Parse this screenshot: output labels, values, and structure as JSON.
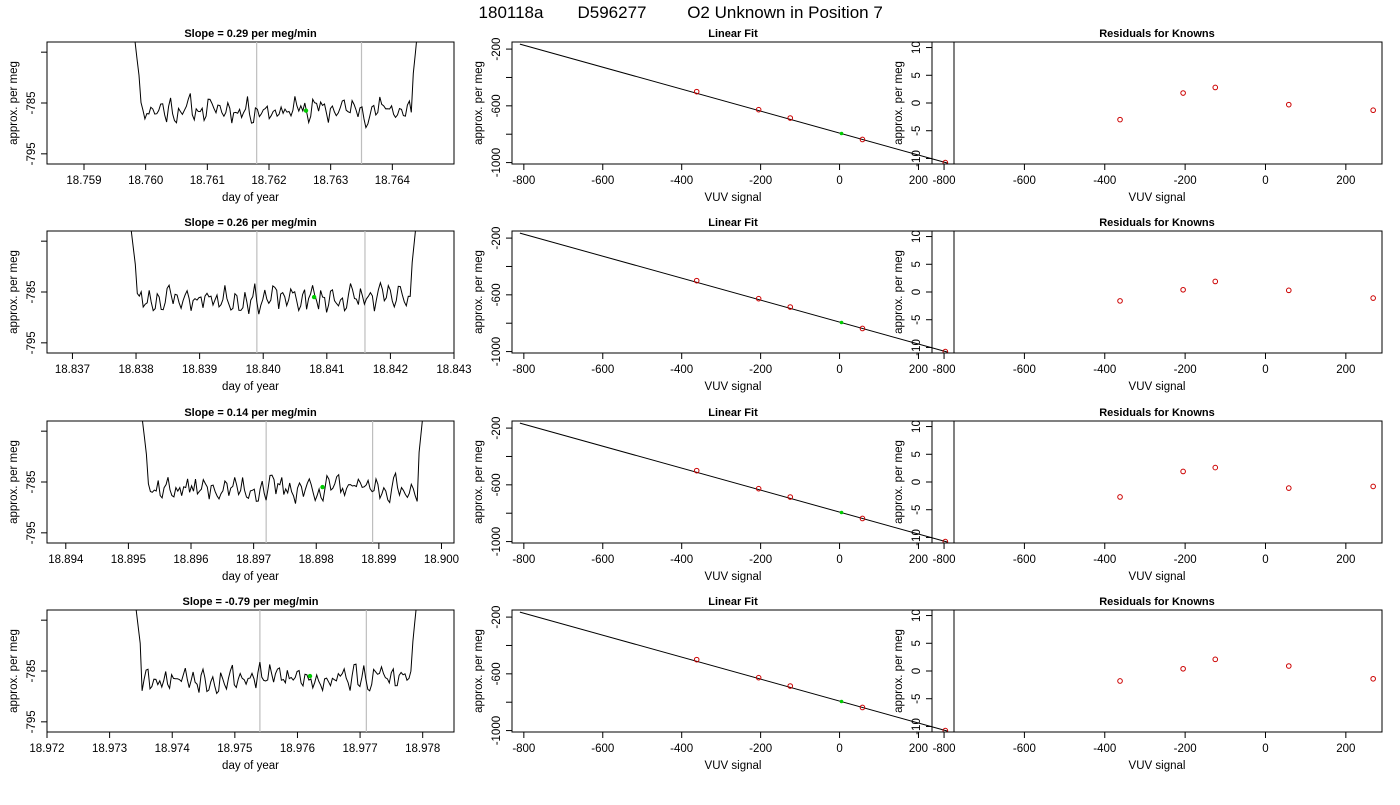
{
  "header": {
    "run_id": "180118a",
    "sample_id": "D596277",
    "description": "O2 Unknown in Position  7"
  },
  "chart_data": [
    {
      "type": "line",
      "panel": "time",
      "row": 0,
      "title": "Slope =  0.29  per meg/min",
      "xlabel": "day of year",
      "ylabel": "approx. per meg",
      "xlim": [
        18.7584,
        18.765
      ],
      "ylim": [
        -797,
        -773
      ],
      "xticks": [
        18.759,
        18.76,
        18.761,
        18.762,
        18.763,
        18.764
      ],
      "xtick_labels": [
        "18.759",
        "18.760",
        "18.761",
        "18.762",
        "18.763",
        "18.764"
      ],
      "yticks": [
        -795,
        -785,
        -775
      ],
      "ytick_labels": [
        "-795",
        "-785",
        ""
      ],
      "x_start": 18.7597,
      "x_end": 18.7645,
      "vlines": [
        18.7618,
        18.7635
      ],
      "marker": {
        "x": 18.7626,
        "y": -786.5
      },
      "seed": 11,
      "fill_color": "#00cc00"
    },
    {
      "type": "scatter",
      "panel": "fit",
      "row": 0,
      "title": "Linear Fit",
      "xlabel": "VUV signal",
      "ylabel": "approx. per meg",
      "xlim": [
        -830,
        290
      ],
      "ylim": [
        -1010,
        -150
      ],
      "xticks": [
        -800,
        -600,
        -400,
        -200,
        0,
        200
      ],
      "xtick_labels": [
        "-800",
        "-600",
        "-400",
        "-200",
        "0",
        "200"
      ],
      "yticks": [
        -1000,
        -800,
        -600,
        -400,
        -200
      ],
      "ytick_labels": [
        "-1000",
        "",
        "-600",
        "",
        "-200"
      ],
      "line": {
        "x1": -810,
        "y1": -165,
        "x2": 275,
        "y2": -1005
      },
      "points_x": [
        -362,
        -205,
        -125,
        58,
        268
      ],
      "points_y": [
        -500,
        -627,
        -686,
        -837,
        -1000
      ],
      "marker": {
        "x": 5,
        "y": -795
      }
    },
    {
      "type": "scatter",
      "panel": "resid",
      "row": 0,
      "title": "Residuals for Knowns",
      "xlabel": "VUV signal",
      "ylabel": "approx. per meg",
      "xlim": [
        -830,
        290
      ],
      "ylim": [
        -11,
        11
      ],
      "xticks": [
        -800,
        -600,
        -400,
        -200,
        0,
        200
      ],
      "xtick_labels": [
        "-800",
        "-600",
        "-400",
        "-200",
        "0",
        "200"
      ],
      "yticks": [
        -10,
        -5,
        0,
        5,
        10
      ],
      "ytick_labels": [
        "-10",
        "-5",
        "0",
        "5",
        "10"
      ],
      "points_x": [
        -362,
        -205,
        -125,
        58,
        268
      ],
      "points_y": [
        -3.0,
        1.8,
        2.8,
        -0.3,
        -1.3
      ]
    },
    {
      "type": "line",
      "panel": "time",
      "row": 1,
      "title": "Slope =  0.26  per meg/min",
      "xlabel": "day of year",
      "ylabel": "approx. per meg",
      "xlim": [
        18.8366,
        18.843
      ],
      "ylim": [
        -797,
        -773
      ],
      "xticks": [
        18.837,
        18.838,
        18.839,
        18.84,
        18.841,
        18.842,
        18.843
      ],
      "xtick_labels": [
        "18.837",
        "18.838",
        "18.839",
        "18.840",
        "18.841",
        "18.842",
        "18.843"
      ],
      "yticks": [
        -795,
        -785,
        -775
      ],
      "ytick_labels": [
        "-795",
        "-785",
        ""
      ],
      "x_start": 18.8378,
      "x_end": 18.8425,
      "vlines": [
        18.8399,
        18.8416
      ],
      "marker": {
        "x": 18.8408,
        "y": -786
      },
      "seed": 23
    },
    {
      "type": "scatter",
      "panel": "fit",
      "row": 1,
      "title": "Linear Fit",
      "xlabel": "VUV signal",
      "ylabel": "approx. per meg",
      "xlim": [
        -830,
        290
      ],
      "ylim": [
        -1010,
        -150
      ],
      "xticks": [
        -800,
        -600,
        -400,
        -200,
        0,
        200
      ],
      "xtick_labels": [
        "-800",
        "-600",
        "-400",
        "-200",
        "0",
        "200"
      ],
      "yticks": [
        -1000,
        -800,
        -600,
        -400,
        -200
      ],
      "ytick_labels": [
        "-1000",
        "",
        "-600",
        "",
        "-200"
      ],
      "line": {
        "x1": -810,
        "y1": -165,
        "x2": 275,
        "y2": -1005
      },
      "points_x": [
        -362,
        -205,
        -125,
        58,
        268
      ],
      "points_y": [
        -500,
        -627,
        -686,
        -837,
        -1000
      ],
      "marker": {
        "x": 5,
        "y": -795
      }
    },
    {
      "type": "scatter",
      "panel": "resid",
      "row": 1,
      "title": "Residuals for Knowns",
      "xlabel": "VUV signal",
      "ylabel": "approx. per meg",
      "xlim": [
        -830,
        290
      ],
      "ylim": [
        -11,
        11
      ],
      "xticks": [
        -800,
        -600,
        -400,
        -200,
        0,
        200
      ],
      "xtick_labels": [
        "-800",
        "-600",
        "-400",
        "-200",
        "0",
        "200"
      ],
      "yticks": [
        -10,
        -5,
        0,
        5,
        10
      ],
      "ytick_labels": [
        "-10",
        "-5",
        "0",
        "5",
        "10"
      ],
      "points_x": [
        -362,
        -205,
        -125,
        58,
        268
      ],
      "points_y": [
        -1.6,
        0.4,
        1.9,
        0.3,
        -1.1
      ]
    },
    {
      "type": "line",
      "panel": "time",
      "row": 2,
      "title": "Slope =  0.14  per meg/min",
      "xlabel": "day of year",
      "ylabel": "approx. per meg",
      "xlim": [
        18.8937,
        18.9002
      ],
      "ylim": [
        -797,
        -773
      ],
      "xticks": [
        18.894,
        18.895,
        18.896,
        18.897,
        18.898,
        18.899,
        18.9
      ],
      "xtick_labels": [
        "18.894",
        "18.895",
        "18.896",
        "18.897",
        "18.898",
        "18.899",
        "18.900"
      ],
      "yticks": [
        -795,
        -785,
        -775
      ],
      "ytick_labels": [
        "-795",
        "-785",
        ""
      ],
      "x_start": 18.8951,
      "x_end": 18.8998,
      "vlines": [
        18.8972,
        18.8989
      ],
      "marker": {
        "x": 18.8981,
        "y": -786
      },
      "seed": 37
    },
    {
      "type": "scatter",
      "panel": "fit",
      "row": 2,
      "title": "Linear Fit",
      "xlabel": "VUV signal",
      "ylabel": "approx. per meg",
      "xlim": [
        -830,
        290
      ],
      "ylim": [
        -1010,
        -150
      ],
      "xticks": [
        -800,
        -600,
        -400,
        -200,
        0,
        200
      ],
      "xtick_labels": [
        "-800",
        "-600",
        "-400",
        "-200",
        "0",
        "200"
      ],
      "yticks": [
        -1000,
        -800,
        -600,
        -400,
        -200
      ],
      "ytick_labels": [
        "-1000",
        "",
        "-600",
        "",
        "-200"
      ],
      "line": {
        "x1": -810,
        "y1": -165,
        "x2": 275,
        "y2": -1005
      },
      "points_x": [
        -362,
        -205,
        -125,
        58,
        268
      ],
      "points_y": [
        -500,
        -627,
        -686,
        -837,
        -1000
      ],
      "marker": {
        "x": 5,
        "y": -795
      }
    },
    {
      "type": "scatter",
      "panel": "resid",
      "row": 2,
      "title": "Residuals for Knowns",
      "xlabel": "VUV signal",
      "ylabel": "approx. per meg",
      "xlim": [
        -830,
        290
      ],
      "ylim": [
        -11,
        11
      ],
      "xticks": [
        -800,
        -600,
        -400,
        -200,
        0,
        200
      ],
      "xtick_labels": [
        "-800",
        "-600",
        "-400",
        "-200",
        "0",
        "200"
      ],
      "yticks": [
        -10,
        -5,
        0,
        5,
        10
      ],
      "ytick_labels": [
        "-10",
        "-5",
        "0",
        "5",
        "10"
      ],
      "points_x": [
        -362,
        -205,
        -125,
        58,
        268
      ],
      "points_y": [
        -2.7,
        1.9,
        2.6,
        -1.1,
        -0.8
      ]
    },
    {
      "type": "line",
      "panel": "time",
      "row": 3,
      "title": "Slope =  -0.79  per meg/min",
      "xlabel": "day of year",
      "ylabel": "approx. per meg",
      "xlim": [
        18.972,
        18.9785
      ],
      "ylim": [
        -797,
        -773
      ],
      "xticks": [
        18.972,
        18.973,
        18.974,
        18.975,
        18.976,
        18.977,
        18.978
      ],
      "xtick_labels": [
        "18.972",
        "18.973",
        "18.974",
        "18.975",
        "18.976",
        "18.977",
        "18.978"
      ],
      "yticks": [
        -795,
        -785,
        -775
      ],
      "ytick_labels": [
        "-795",
        "-785",
        ""
      ],
      "x_start": 18.9733,
      "x_end": 18.978,
      "vlines": [
        18.9754,
        18.9771
      ],
      "marker": {
        "x": 18.9762,
        "y": -786
      },
      "seed": 53
    },
    {
      "type": "scatter",
      "panel": "fit",
      "row": 3,
      "title": "Linear Fit",
      "xlabel": "VUV signal",
      "ylabel": "approx. per meg",
      "xlim": [
        -830,
        290
      ],
      "ylim": [
        -1010,
        -150
      ],
      "xticks": [
        -800,
        -600,
        -400,
        -200,
        0,
        200
      ],
      "xtick_labels": [
        "-800",
        "-600",
        "-400",
        "-200",
        "0",
        "200"
      ],
      "yticks": [
        -1000,
        -800,
        -600,
        -400,
        -200
      ],
      "ytick_labels": [
        "-1000",
        "",
        "-600",
        "",
        "-200"
      ],
      "line": {
        "x1": -810,
        "y1": -165,
        "x2": 275,
        "y2": -1005
      },
      "points_x": [
        -362,
        -205,
        -125,
        58,
        268
      ],
      "points_y": [
        -500,
        -627,
        -686,
        -837,
        -1000
      ],
      "marker": {
        "x": 5,
        "y": -795
      }
    },
    {
      "type": "scatter",
      "panel": "resid",
      "row": 3,
      "title": "Residuals for Knowns",
      "xlabel": "VUV signal",
      "ylabel": "approx. per meg",
      "xlim": [
        -830,
        290
      ],
      "ylim": [
        -11,
        11
      ],
      "xticks": [
        -800,
        -600,
        -400,
        -200,
        0,
        200
      ],
      "xtick_labels": [
        "-800",
        "-600",
        "-400",
        "-200",
        "0",
        "200"
      ],
      "yticks": [
        -10,
        -5,
        0,
        5,
        10
      ],
      "ytick_labels": [
        "-10",
        "-5",
        "0",
        "5",
        "10"
      ],
      "points_x": [
        -362,
        -205,
        -125,
        58,
        268
      ],
      "points_y": [
        -1.8,
        0.4,
        2.1,
        0.9,
        -1.4
      ]
    }
  ],
  "colors": {
    "axis": "#000000",
    "series_line": "#000000",
    "vline": "#bebebe",
    "marker_green": "#00cc00",
    "point_red": "#cc0000"
  }
}
